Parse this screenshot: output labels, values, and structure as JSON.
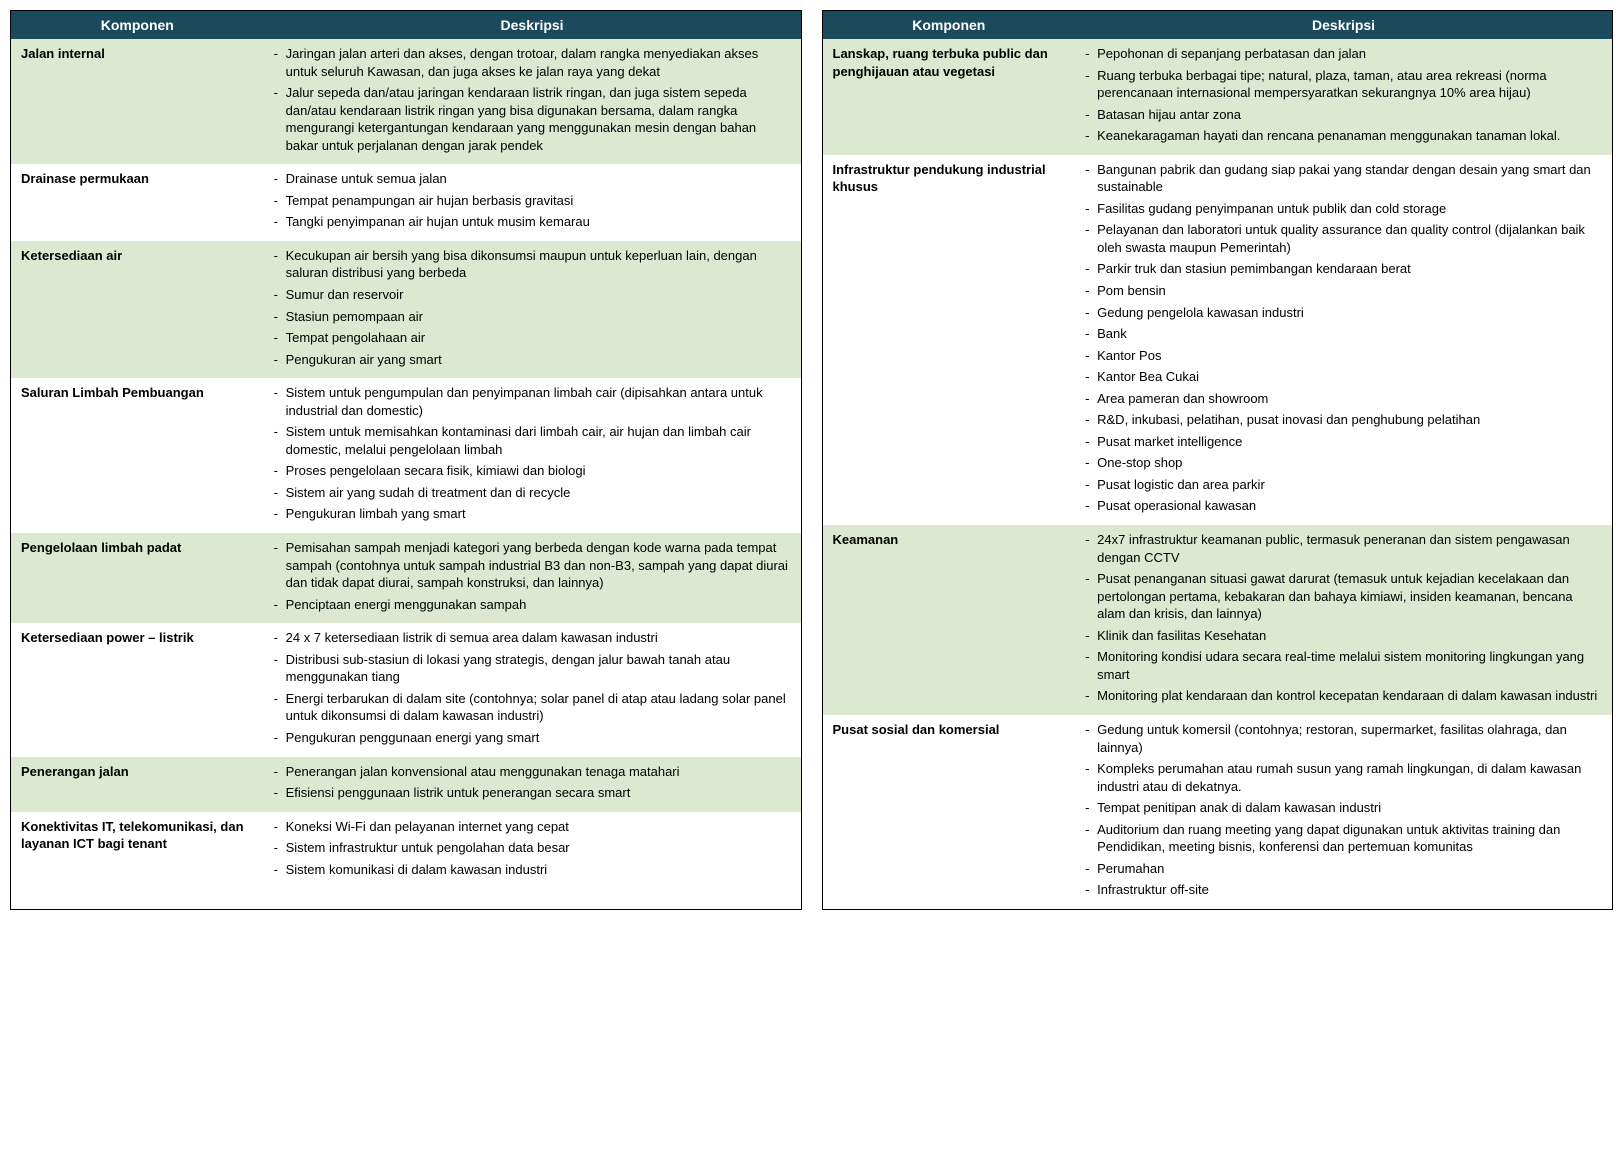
{
  "colors": {
    "header_bg": "#1a4a5c",
    "header_text": "#ffffff",
    "alt_row_bg": "#dce8d0",
    "norm_row_bg": "#ffffff",
    "text": "#000000"
  },
  "headers": {
    "komponen": "Komponen",
    "deskripsi": "Deskripsi"
  },
  "leftRows": [
    {
      "alt": true,
      "komponen": "Jalan internal",
      "items": [
        "Jaringan jalan arteri dan akses, dengan trotoar, dalam rangka menyediakan akses untuk seluruh Kawasan, dan juga akses ke jalan raya yang dekat",
        "Jalur sepeda dan/atau jaringan kendaraan listrik ringan, dan juga sistem sepeda dan/atau kendaraan listrik ringan yang bisa digunakan bersama, dalam rangka mengurangi ketergantungan kendaraan yang menggunakan mesin dengan bahan bakar untuk perjalanan dengan jarak pendek"
      ]
    },
    {
      "alt": false,
      "komponen": "Drainase permukaan",
      "items": [
        "Drainase untuk semua jalan",
        "Tempat penampungan air hujan berbasis gravitasi",
        "Tangki penyimpanan air hujan untuk musim kemarau"
      ]
    },
    {
      "alt": true,
      "komponen": "Ketersediaan air",
      "items": [
        "Kecukupan air bersih yang bisa dikonsumsi maupun untuk keperluan lain, dengan saluran distribusi yang berbeda",
        "Sumur dan reservoir",
        "Stasiun pemompaan air",
        "Tempat pengolahaan air",
        "Pengukuran air yang smart"
      ]
    },
    {
      "alt": false,
      "komponen": "Saluran Limbah Pembuangan",
      "items": [
        "Sistem untuk pengumpulan dan penyimpanan limbah cair (dipisahkan antara untuk industrial dan domestic)",
        "Sistem untuk memisahkan kontaminasi dari limbah cair, air hujan dan limbah cair domestic, melalui pengelolaan limbah",
        "Proses pengelolaan secara fisik, kimiawi dan biologi",
        "Sistem air yang sudah di treatment dan di recycle",
        "Pengukuran limbah yang smart"
      ]
    },
    {
      "alt": true,
      "komponen": "Pengelolaan limbah padat",
      "items": [
        "Pemisahan sampah menjadi kategori yang berbeda dengan kode warna pada tempat sampah (contohnya untuk sampah industrial B3 dan non-B3, sampah yang dapat diurai dan tidak dapat diurai, sampah konstruksi, dan lainnya)",
        "Penciptaan energi menggunakan sampah"
      ]
    },
    {
      "alt": false,
      "komponen": "Ketersediaan power – listrik",
      "items": [
        "24 x 7 ketersediaan listrik di semua area dalam kawasan industri",
        "Distribusi sub-stasiun di lokasi yang strategis, dengan jalur bawah tanah atau menggunakan tiang",
        "Energi terbarukan di dalam site (contohnya; solar panel di atap atau ladang solar panel untuk dikonsumsi di dalam kawasan industri)",
        "Pengukuran penggunaan energi yang smart"
      ]
    },
    {
      "alt": true,
      "komponen": "Penerangan jalan",
      "items": [
        "Penerangan jalan konvensional atau menggunakan tenaga matahari",
        "Efisiensi penggunaan listrik untuk penerangan secara smart"
      ]
    },
    {
      "alt": false,
      "komponen": "Konektivitas IT, telekomunikasi, dan layanan ICT bagi tenant",
      "items": [
        "Koneksi Wi-Fi dan pelayanan internet yang cepat",
        "Sistem infrastruktur untuk pengolahan data besar",
        "Sistem komunikasi di dalam kawasan industri"
      ]
    }
  ],
  "rightRows": [
    {
      "alt": true,
      "komponen": "Lanskap, ruang terbuka public dan penghijauan atau vegetasi",
      "items": [
        "Pepohonan di sepanjang perbatasan dan jalan",
        "Ruang terbuka berbagai tipe; natural, plaza, taman, atau area rekreasi (norma perencanaan internasional mempersyaratkan sekurangnya 10% area hijau)",
        "Batasan hijau antar zona",
        "Keanekaragaman hayati dan rencana penanaman menggunakan tanaman lokal."
      ]
    },
    {
      "alt": false,
      "komponen": "Infrastruktur pendukung industrial khusus",
      "items": [
        "Bangunan pabrik dan gudang siap pakai yang standar dengan desain yang smart dan sustainable",
        "Fasilitas gudang penyimpanan untuk publik dan cold storage",
        "Pelayanan dan laboratori untuk quality assurance dan quality control (dijalankan baik oleh swasta maupun Pemerintah)",
        "Parkir truk dan stasiun pemimbangan kendaraan berat",
        "Pom bensin",
        "Gedung pengelola kawasan industri",
        "Bank",
        "Kantor Pos",
        "Kantor Bea Cukai",
        "Area pameran dan showroom",
        "R&D, inkubasi, pelatihan, pusat inovasi dan penghubung pelatihan",
        "Pusat market intelligence",
        "One-stop shop",
        "Pusat logistic dan area parkir",
        "Pusat operasional kawasan"
      ]
    },
    {
      "alt": true,
      "komponen": "Keamanan",
      "items": [
        "24x7 infrastruktur keamanan public, termasuk peneranan dan sistem pengawasan dengan CCTV",
        "Pusat penanganan situasi gawat darurat (temasuk untuk kejadian kecelakaan dan pertolongan pertama, kebakaran dan bahaya kimiawi, insiden keamanan, bencana alam dan krisis, dan lainnya)",
        "Klinik dan fasilitas Kesehatan",
        "Monitoring kondisi udara secara real-time melalui sistem monitoring lingkungan yang smart",
        "Monitoring plat kendaraan dan kontrol kecepatan kendaraan di dalam kawasan industri"
      ]
    },
    {
      "alt": false,
      "komponen": "Pusat sosial dan komersial",
      "items": [
        "Gedung untuk komersil (contohnya; restoran, supermarket, fasilitas olahraga, dan lainnya)",
        "Kompleks perumahan atau rumah susun yang ramah lingkungan, di dalam kawasan industri atau di dekatnya.",
        "Tempat penitipan anak di dalam kawasan industri",
        "Auditorium dan ruang meeting yang dapat digunakan untuk aktivitas training dan Pendidikan, meeting bisnis, konferensi dan pertemuan komunitas",
        "Perumahan",
        "Infrastruktur off-site"
      ]
    }
  ]
}
